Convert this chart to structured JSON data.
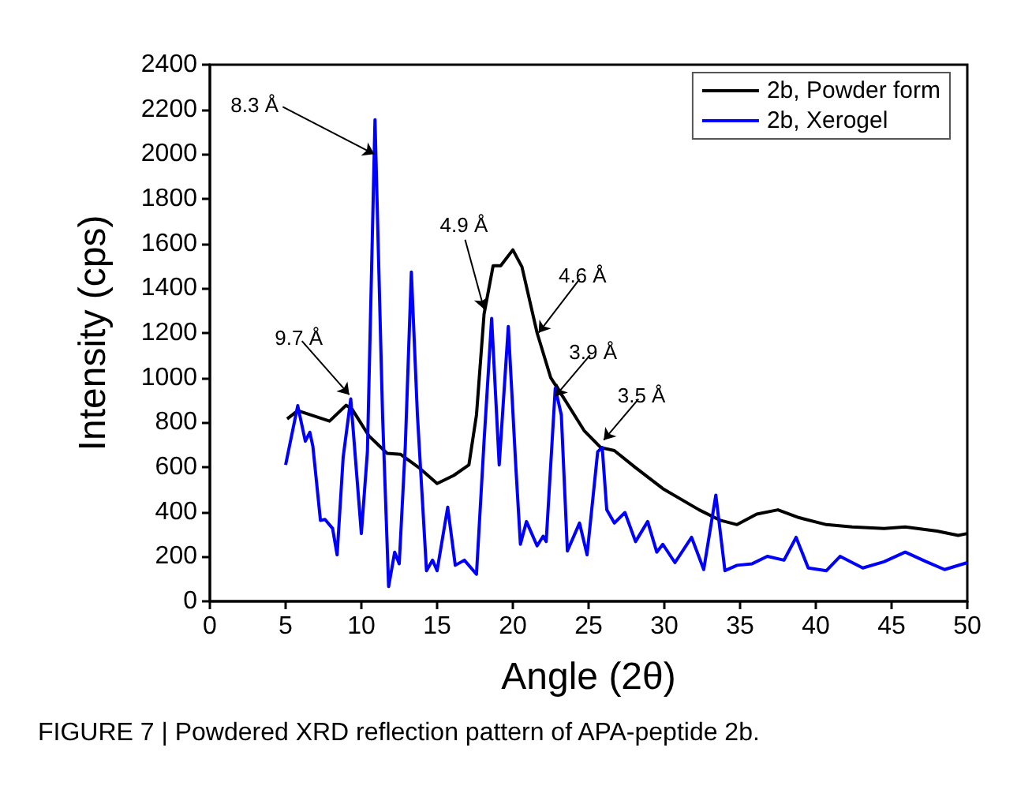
{
  "chart_data": {
    "type": "line",
    "xlabel": "Angle (2θ)",
    "ylabel": "Intensity (cps)",
    "xlim": [
      0,
      50
    ],
    "xticks": [
      0,
      5,
      10,
      15,
      20,
      25,
      30,
      35,
      40,
      45,
      50
    ],
    "ylim": [
      0,
      2400
    ],
    "yticks": [
      0,
      200,
      400,
      600,
      800,
      1000,
      1200,
      1400,
      1600,
      1800,
      2000,
      2200,
      2400
    ],
    "grid": false,
    "legend": "top right",
    "marker": "none",
    "line_style": "solid",
    "series": [
      {
        "name": "2b, Powder form",
        "color": "#000000",
        "x": [
          5.1,
          5.8,
          7.9,
          9.0,
          9.4,
          10.5,
          11.7,
          12.6,
          13.8,
          15.0,
          16.1,
          17.1,
          17.6,
          18.1,
          18.7,
          19.2,
          20.0,
          20.6,
          21.6,
          22.5,
          23.4,
          24.7,
          25.8,
          26.7,
          28.1,
          29.9,
          32.3,
          33.7,
          34.8,
          36.1,
          37.5,
          38.9,
          40.7,
          42.4,
          44.5,
          45.9,
          48.0,
          49.4,
          50
        ],
        "values": [
          816,
          853,
          806,
          877,
          858,
          740,
          662,
          657,
          598,
          527,
          563,
          610,
          834,
          1284,
          1501,
          1501,
          1572,
          1496,
          1201,
          1000,
          905,
          764,
          688,
          674,
          598,
          504,
          409,
          362,
          343,
          390,
          409,
          374,
          343,
          333,
          326,
          333,
          314,
          295,
          303
        ]
      },
      {
        "name": "2b, Xerogel",
        "color": "#0000ff",
        "x": [
          5.0,
          5.8,
          6.3,
          6.6,
          6.8,
          7.3,
          7.6,
          8.1,
          8.4,
          8.8,
          9.3,
          10.0,
          10.4,
          10.9,
          11.4,
          11.8,
          12.2,
          12.5,
          12.9,
          13.3,
          13.7,
          14.3,
          14.7,
          15.0,
          15.7,
          16.2,
          16.8,
          17.6,
          18.1,
          18.6,
          19.1,
          19.7,
          20.2,
          20.5,
          20.9,
          21.6,
          22.0,
          22.2,
          22.8,
          23.2,
          23.6,
          24.4,
          24.9,
          25.6,
          25.9,
          26.2,
          26.7,
          27.4,
          28.1,
          28.9,
          29.5,
          29.9,
          30.7,
          31.8,
          32.6,
          33.4,
          34.0,
          34.8,
          35.8,
          36.8,
          37.9,
          38.7,
          39.5,
          40.7,
          41.6,
          43.1,
          44.5,
          45.9,
          47.3,
          48.5,
          50
        ],
        "values": [
          610,
          875,
          716,
          756,
          693,
          362,
          366,
          326,
          208,
          645,
          905,
          303,
          669,
          2154,
          834,
          66,
          220,
          168,
          693,
          1473,
          834,
          137,
          184,
          137,
          421,
          161,
          184,
          121,
          716,
          1265,
          610,
          1229,
          598,
          255,
          357,
          248,
          291,
          267,
          953,
          834,
          225,
          350,
          208,
          669,
          688,
          409,
          350,
          397,
          267,
          357,
          220,
          255,
          173,
          286,
          142,
          475,
          137,
          161,
          168,
          201,
          184,
          286,
          149,
          137,
          201,
          149,
          177,
          220,
          177,
          142,
          173
        ]
      }
    ],
    "annotations": [
      {
        "text": "8.3 Å",
        "x": 10.85,
        "y": 2000
      },
      {
        "text": "9.7 Å",
        "x": 9.2,
        "y": 924
      },
      {
        "text": "4.9 Å",
        "x": 18.1,
        "y": 1307
      },
      {
        "text": "4.6 Å",
        "x": 21.7,
        "y": 1201
      },
      {
        "text": "3.9 Å",
        "x": 22.8,
        "y": 917
      },
      {
        "text": "3.5 Å",
        "x": 26.0,
        "y": 721
      },
      "FIGURE 7 | Powdered XRD reflection pattern of APA-peptide 2b."
    ]
  }
}
